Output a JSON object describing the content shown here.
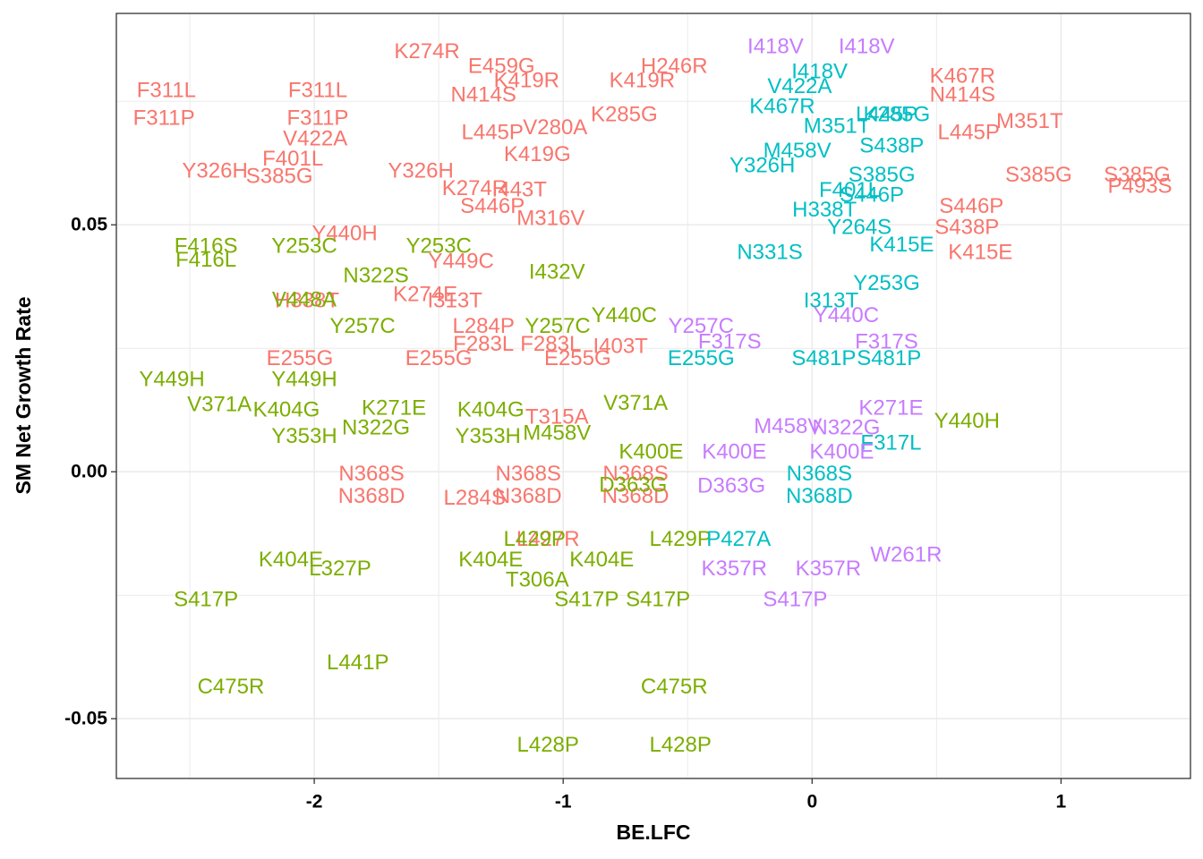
{
  "chart_data": {
    "type": "scatter",
    "xlabel": "BE.LFC",
    "ylabel": "SM Net Growth Rate",
    "xlim": [
      -2.795,
      1.52
    ],
    "ylim": [
      -0.0621,
      0.0928
    ],
    "xticks": [
      -2,
      -1,
      0,
      1
    ],
    "yticks": [
      {
        "value": 0.05,
        "label": "0.05"
      },
      {
        "value": 0,
        "label": "0.00"
      },
      {
        "value": -0.05,
        "label": "-0.05"
      }
    ],
    "xminorticks": [
      -2.5,
      -1.5,
      -0.5,
      0.5
    ],
    "yminorticks": [
      0.075,
      0.025,
      -0.025
    ],
    "grid": true,
    "series": [
      {
        "color": "#F8766D",
        "labels": [
          "F311L",
          "F311P",
          "F311L",
          "F311P",
          "K274R",
          "E459G",
          "N414S",
          "K419R",
          "K419R",
          "H246R",
          "K467R",
          "N414S",
          "M351T",
          "L445P",
          "V422A",
          "Y326H",
          "S385G",
          "F401L",
          "Y326H",
          "L445P",
          "V280A",
          "K285G",
          "K419G",
          "K274R",
          "I443T",
          "S446P",
          "M316V",
          "Y440H",
          "Y449C",
          "K274E",
          "I313T",
          "H338T",
          "L284P",
          "F283L",
          "F283L",
          "E255G",
          "E255G",
          "E255G",
          "I403T",
          "T315A",
          "N368S",
          "N368D",
          "N368S",
          "N368D",
          "N368S",
          "N368D",
          "L284S",
          "L427R",
          "S385G",
          "S385G",
          "P493S",
          "S446P",
          "S438P",
          "K415E"
        ],
        "x": [
          -2.594,
          -2.604,
          -1.986,
          -1.986,
          -1.547,
          -1.248,
          -1.32,
          -1.147,
          -0.683,
          -0.554,
          0.604,
          0.604,
          0.874,
          0.629,
          -1.996,
          -2.399,
          -2.14,
          -2.086,
          -1.572,
          -1.284,
          -1.032,
          -0.755,
          -1.104,
          -1.355,
          -1.176,
          -1.284,
          -1.05,
          -1.878,
          -1.41,
          -1.554,
          -1.435,
          -2.029,
          -1.32,
          -1.32,
          -1.05,
          -2.058,
          -1.5,
          -0.942,
          -0.77,
          -1.025,
          -1.77,
          -1.77,
          -1.14,
          -1.14,
          -0.709,
          -0.709,
          -1.356,
          -1.061,
          0.91,
          1.306,
          1.317,
          0.64,
          0.622,
          0.676
        ],
        "y": [
          0.0772,
          0.0716,
          0.0772,
          0.0716,
          0.0851,
          0.0821,
          0.0763,
          0.0792,
          0.0792,
          0.0821,
          0.0801,
          0.0763,
          0.071,
          0.0687,
          0.0674,
          0.0609,
          0.0598,
          0.0634,
          0.0609,
          0.0687,
          0.0697,
          0.0723,
          0.0643,
          0.0574,
          0.0571,
          0.0538,
          0.0513,
          0.0482,
          0.0426,
          0.0359,
          0.0346,
          0.0346,
          0.0295,
          0.0259,
          0.0259,
          0.023,
          0.023,
          0.023,
          0.0254,
          0.0111,
          -0.0004,
          -0.0049,
          -0.0004,
          -0.0049,
          -0.0004,
          -0.0049,
          -0.0053,
          -0.0136,
          0.0601,
          0.0601,
          0.0578,
          0.0538,
          0.0495,
          0.0444
        ]
      },
      {
        "color": "#7CAE00",
        "labels": [
          "F416S",
          "F416L",
          "Y253C",
          "Y253C",
          "N322S",
          "V448A",
          "Y257C",
          "Y449H",
          "Y449H",
          "V371A",
          "K404G",
          "K271E",
          "N322G",
          "Y353H",
          "K404G",
          "Y353H",
          "M458V",
          "V371A",
          "K400E",
          "D363G",
          "Y440C",
          "Y257C",
          "I432V",
          "Y440H",
          "L429P",
          "L429P",
          "K404E",
          "L327P",
          "K404E",
          "K404E",
          "T306A",
          "S417P",
          "S417P",
          "S417P",
          "L441P",
          "C475R",
          "C475R",
          "L428P",
          "L428P"
        ],
        "x": [
          -2.435,
          -2.435,
          -2.04,
          -1.5,
          -1.752,
          -2.04,
          -1.806,
          -2.572,
          -2.04,
          -2.381,
          -2.112,
          -1.68,
          -1.752,
          -2.04,
          -1.291,
          -1.302,
          -1.025,
          -0.709,
          -0.647,
          -0.719,
          -0.755,
          -1.022,
          -1.025,
          0.622,
          -1.115,
          -0.529,
          -2.094,
          -1.896,
          -1.291,
          -0.845,
          -1.104,
          -2.435,
          -0.906,
          -0.619,
          -1.825,
          -2.335,
          -0.554,
          -1.061,
          -0.529
        ],
        "y": [
          0.0457,
          0.0429,
          0.0457,
          0.0457,
          0.0397,
          0.0348,
          0.0295,
          0.0187,
          0.0187,
          0.0136,
          0.0125,
          0.0129,
          0.0089,
          0.0072,
          0.0125,
          0.0072,
          0.0078,
          0.0139,
          0.004,
          -0.0027,
          0.0317,
          0.0295,
          0.0404,
          0.0103,
          -0.0136,
          -0.0136,
          -0.0178,
          -0.0196,
          -0.0178,
          -0.0178,
          -0.0219,
          -0.0259,
          -0.0259,
          -0.0259,
          -0.0386,
          -0.0435,
          -0.0435,
          -0.0553,
          -0.0553
        ]
      },
      {
        "color": "#00BFC4",
        "labels": [
          "P427A",
          "S481P",
          "S481P",
          "E255G",
          "I313T",
          "Y253G",
          "N368S",
          "N368D",
          "F317L",
          "Y264S",
          "L445P",
          "K285G",
          "N331S",
          "S385G",
          "K415E",
          "S438P",
          "V422A",
          "I418V",
          "M351T",
          "K467R",
          "Y326H",
          "F401L",
          "H338T",
          "M458V",
          "S446P"
        ],
        "x": [
          -0.295,
          0.047,
          0.309,
          -0.446,
          0.076,
          0.299,
          0.029,
          0.029,
          0.317,
          0.19,
          0.3,
          0.34,
          -0.17,
          0.28,
          0.36,
          0.32,
          -0.05,
          0.03,
          0.1,
          -0.12,
          -0.2,
          0.15,
          0.05,
          -0.06,
          0.24
        ],
        "y": [
          -0.0136,
          0.023,
          0.023,
          0.023,
          0.0346,
          0.0382,
          -0.0004,
          -0.0049,
          0.0058,
          0.0495,
          0.0723,
          0.0723,
          0.0444,
          0.0601,
          0.046,
          0.066,
          0.078,
          0.081,
          0.07,
          0.074,
          0.062,
          0.057,
          0.053,
          0.065,
          0.056
        ]
      },
      {
        "color": "#C77CFF",
        "labels": [
          "I418V",
          "I418V",
          "Y257C",
          "F317S",
          "Y440C",
          "F317S",
          "W261R",
          "K357R",
          "K357R",
          "S417P",
          "D363G",
          "K400E",
          "K400E",
          "K271E",
          "N322G",
          "M458V"
        ],
        "x": [
          -0.147,
          0.219,
          -0.446,
          -0.331,
          0.137,
          0.299,
          0.378,
          -0.313,
          0.065,
          -0.068,
          -0.324,
          -0.313,
          0.119,
          0.317,
          0.137,
          -0.097
        ],
        "y": [
          0.0861,
          0.0861,
          0.0295,
          0.0263,
          0.0317,
          0.0263,
          -0.0168,
          -0.0196,
          -0.0196,
          -0.0259,
          -0.0029,
          0.004,
          0.004,
          0.0129,
          0.0089,
          0.0092
        ]
      }
    ]
  }
}
